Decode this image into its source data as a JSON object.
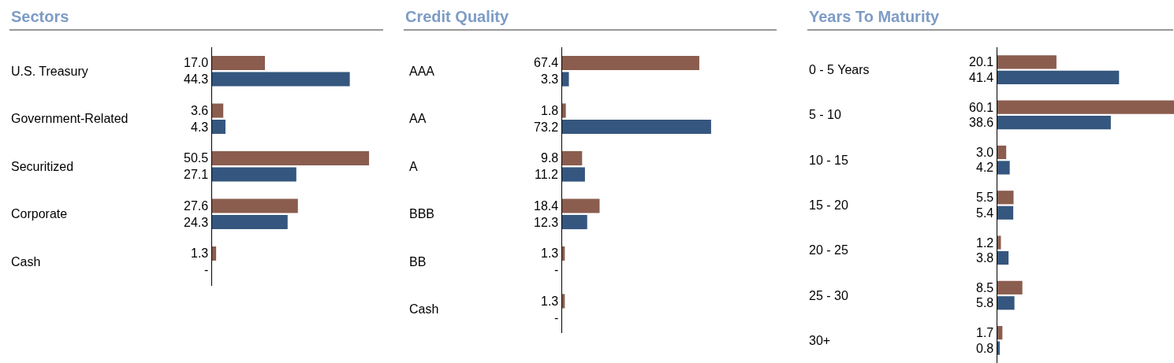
{
  "chart_data": [
    {
      "type": "bar",
      "orientation": "horizontal",
      "title": "Sectors",
      "categories": [
        "U.S. Treasury",
        "Government-Related",
        "Securitized",
        "Corporate",
        "Cash"
      ],
      "series": [
        {
          "color": "#8a5d4f",
          "values": [
            17.0,
            3.6,
            50.5,
            27.6,
            1.3
          ],
          "value_labels": [
            "17.0",
            "3.6",
            "50.5",
            "27.6",
            "1.3"
          ]
        },
        {
          "color": "#35567e",
          "values": [
            44.3,
            4.3,
            27.1,
            24.3,
            null
          ],
          "value_labels": [
            "44.3",
            "4.3",
            "27.1",
            "24.3",
            "-"
          ]
        }
      ]
    },
    {
      "type": "bar",
      "orientation": "horizontal",
      "title": "Credit Quality",
      "categories": [
        "AAA",
        "AA",
        "A",
        "BBB",
        "BB",
        "Cash"
      ],
      "series": [
        {
          "color": "#8a5d4f",
          "values": [
            67.4,
            1.8,
            9.8,
            18.4,
            1.3,
            1.3
          ],
          "value_labels": [
            "67.4",
            "1.8",
            "9.8",
            "18.4",
            "1.3",
            "1.3"
          ]
        },
        {
          "color": "#35567e",
          "values": [
            3.3,
            73.2,
            11.2,
            12.3,
            null,
            null
          ],
          "value_labels": [
            "3.3",
            "73.2",
            "11.2",
            "12.3",
            "-",
            "-"
          ]
        }
      ]
    },
    {
      "type": "bar",
      "orientation": "horizontal",
      "title": "Years To Maturity",
      "categories": [
        "0 - 5 Years",
        "5 - 10",
        "10 - 15",
        "15 - 20",
        "20 - 25",
        "25 - 30",
        "30+"
      ],
      "series": [
        {
          "color": "#8a5d4f",
          "values": [
            20.1,
            60.1,
            3.0,
            5.5,
            1.2,
            8.5,
            1.7
          ],
          "value_labels": [
            "20.1",
            "60.1",
            "3.0",
            "5.5",
            "1.2",
            "8.5",
            "1.7"
          ]
        },
        {
          "color": "#35567e",
          "values": [
            41.4,
            38.6,
            4.2,
            5.4,
            3.8,
            5.8,
            0.8
          ],
          "value_labels": [
            "41.4",
            "38.6",
            "4.2",
            "5.4",
            "3.8",
            "5.8",
            "0.8"
          ]
        }
      ]
    }
  ]
}
